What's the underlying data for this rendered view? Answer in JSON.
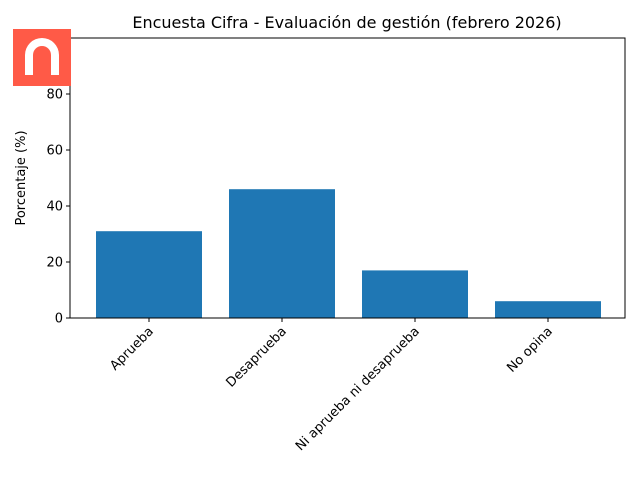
{
  "brand_color": "#ff5a47",
  "logo_icon": "arch-logo-icon",
  "chart_data": {
    "type": "bar",
    "title": "Encuesta Cifra - Evaluación de gestión (febrero 2026)",
    "xlabel": "",
    "ylabel": "Porcentaje (%)",
    "categories": [
      "Aprueba",
      "Desaprueba",
      "Ni aprueba ni desaprueba",
      "No opina"
    ],
    "values": [
      31,
      46,
      17,
      6
    ],
    "yticks": [
      0,
      20,
      40,
      60,
      80
    ],
    "ylim": [
      0,
      100
    ],
    "bar_color": "#1f77b4",
    "grid": false,
    "legend": "none"
  }
}
